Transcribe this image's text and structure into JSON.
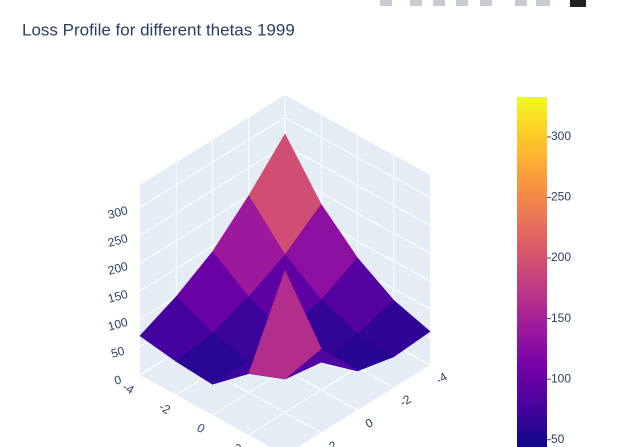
{
  "chart_data": {
    "type": "surface",
    "title": "Loss Profile for different thetas 1999",
    "x": [
      -4,
      -2,
      0,
      2,
      4
    ],
    "y": [
      -4,
      -2,
      0,
      2,
      4
    ],
    "z": [
      [
        270,
        180,
        120,
        80,
        60
      ],
      [
        200,
        130,
        85,
        60,
        55
      ],
      [
        140,
        95,
        65,
        50,
        70
      ],
      [
        100,
        70,
        55,
        60,
        150
      ],
      [
        70,
        60,
        55,
        110,
        330
      ]
    ],
    "xlim": [
      -4,
      4
    ],
    "xticks": [
      -4,
      -2,
      0,
      2
    ],
    "ylim": [
      -4,
      4
    ],
    "yticks": [
      -4,
      -2,
      0,
      2
    ],
    "zlim": [
      0,
      340
    ],
    "zticks": [
      0,
      50,
      100,
      150,
      200,
      250,
      300
    ],
    "colorscale": [
      "#0d0887",
      "#46039f",
      "#7201a8",
      "#9c179e",
      "#bd3786",
      "#d8576b",
      "#ed7953",
      "#fb9f3a",
      "#fdca26",
      "#f0f921"
    ],
    "colorbar": {
      "range": [
        44,
        333
      ],
      "ticks": [
        50,
        100,
        150,
        200,
        250,
        300
      ]
    }
  }
}
